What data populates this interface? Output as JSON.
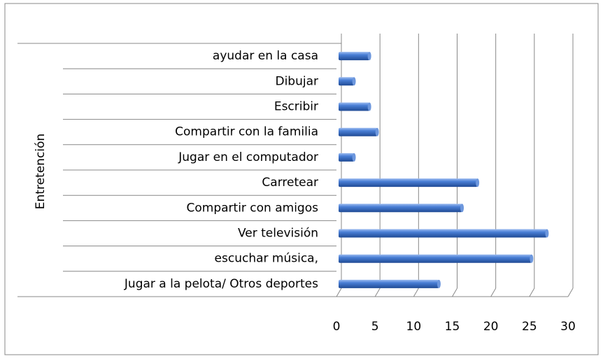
{
  "chart_data": {
    "type": "bar",
    "orientation": "horizontal",
    "y_axis_label": "Entretención",
    "categories": [
      "Jugar a la pelota/ Otros deportes",
      "escuchar música,",
      "Ver televisión",
      "Compartir con amigos",
      "Carretear",
      "Jugar en el computador",
      "Compartir con la familia",
      "Escribir",
      "Dibujar",
      "ayudar en la casa"
    ],
    "values": [
      13,
      25,
      27,
      16,
      18,
      2,
      5,
      4,
      2,
      4
    ],
    "color": "#3a6fc4",
    "xlim": [
      0,
      30
    ],
    "xticks": [
      0,
      5,
      10,
      15,
      20,
      25,
      30
    ],
    "grid": true
  }
}
